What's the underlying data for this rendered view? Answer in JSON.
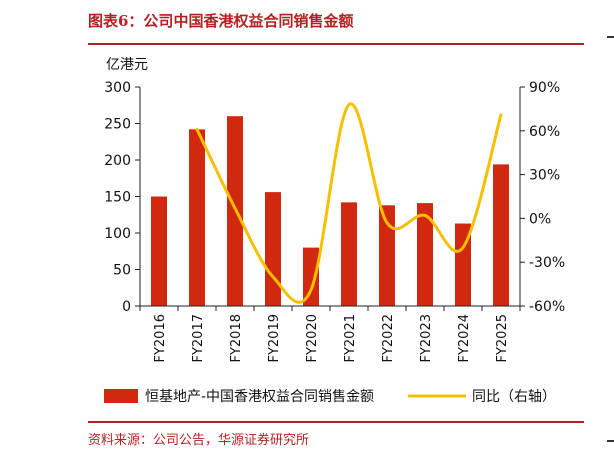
{
  "header": {
    "title": "图表6：公司中国香港权益合同销售金额"
  },
  "footer": {
    "source": "资料来源：公司公告，华源证券研究所"
  },
  "chart_data": {
    "type": "bar",
    "title": "图表6：公司中国香港权益合同销售金额",
    "ylabel": "亿港元",
    "categories": [
      "FY2016",
      "FY2017",
      "FY2018",
      "FY2019",
      "FY2020",
      "FY2021",
      "FY2022",
      "FY2023",
      "FY2024",
      "FY2025"
    ],
    "series": [
      {
        "name": "恒基地产-中国香港权益合同销售金额",
        "type": "bar",
        "axis": "left",
        "color": "#d1290f",
        "values": [
          150,
          242,
          260,
          156,
          80,
          142,
          138,
          141,
          113,
          194
        ]
      },
      {
        "name": "同比（右轴）",
        "type": "line",
        "axis": "right",
        "color": "#f6c000",
        "values": [
          null,
          61,
          7,
          -40,
          -49,
          78,
          -3,
          2,
          -20,
          71
        ]
      }
    ],
    "y_left": {
      "ylim": [
        0,
        300
      ],
      "ticks": [
        "0",
        "50",
        "100",
        "150",
        "200",
        "250",
        "300"
      ]
    },
    "y_right": {
      "ylim": [
        -60,
        90
      ],
      "ticks": [
        "-60%",
        "-30%",
        "0%",
        "30%",
        "60%",
        "90%"
      ]
    },
    "legend_position": "bottom",
    "grid": false
  }
}
